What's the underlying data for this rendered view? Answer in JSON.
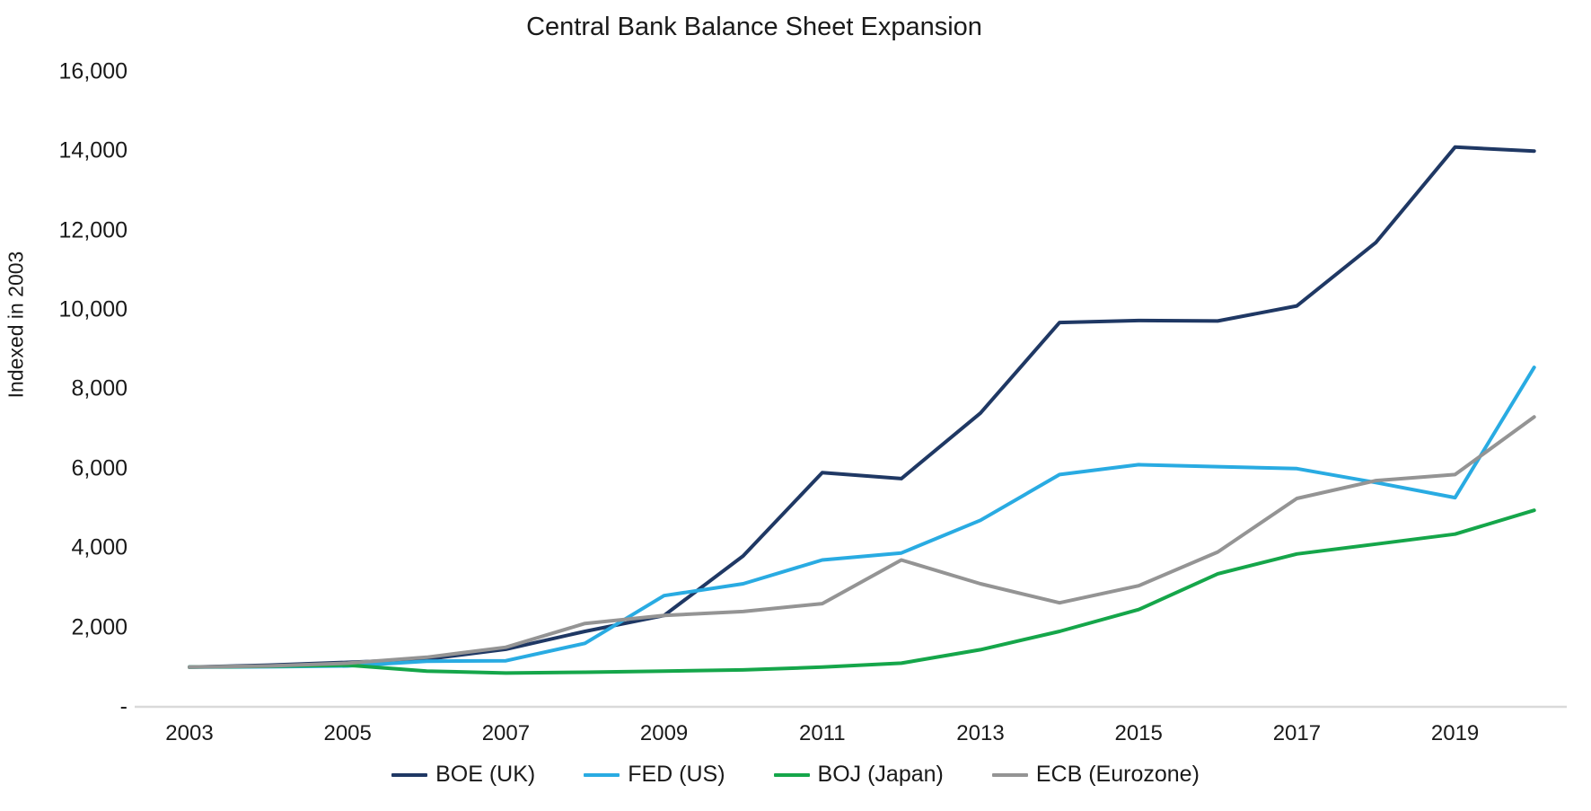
{
  "title": "Central Bank Balance Sheet Expansion",
  "chart_data": {
    "type": "line",
    "title": "Central Bank Balance Sheet Expansion",
    "xlabel": "",
    "ylabel": "Indexed in 2003",
    "x": [
      2003,
      2004,
      2005,
      2006,
      2007,
      2008,
      2009,
      2010,
      2011,
      2012,
      2013,
      2014,
      2015,
      2016,
      2017,
      2018,
      2019,
      2020
    ],
    "series": [
      {
        "name": "BOE (UK)",
        "color": "#1f3864",
        "values": [
          1000,
          1050,
          1120,
          1200,
          1450,
          1900,
          2300,
          3800,
          5900,
          5750,
          7400,
          9680,
          9730,
          9720,
          10100,
          11700,
          14100,
          14000
        ]
      },
      {
        "name": "FED (US)",
        "color": "#29abe2",
        "values": [
          1000,
          1010,
          1030,
          1150,
          1160,
          1600,
          2800,
          3100,
          3700,
          3875,
          4700,
          5850,
          6100,
          6050,
          6000,
          5650,
          5270,
          8550
        ]
      },
      {
        "name": "BOJ (Japan)",
        "color": "#15a64a",
        "values": [
          1000,
          1020,
          1050,
          900,
          850,
          870,
          900,
          930,
          1000,
          1100,
          1440,
          1900,
          2450,
          3350,
          3850,
          4100,
          4350,
          4950
        ]
      },
      {
        "name": "ECB (Eurozone)",
        "color": "#949494",
        "values": [
          1000,
          1030,
          1100,
          1250,
          1500,
          2100,
          2300,
          2400,
          2600,
          3700,
          3100,
          2620,
          3050,
          3900,
          5250,
          5700,
          5850,
          7300
        ]
      }
    ],
    "ylim": [
      0,
      16000
    ],
    "ytick_step": 2000,
    "ytick_labels": [
      "-",
      "2,000",
      "4,000",
      "6,000",
      "8,000",
      "10,000",
      "12,000",
      "14,000",
      "16,000"
    ],
    "xtick_labels": [
      "2003",
      "2005",
      "2007",
      "2009",
      "2011",
      "2013",
      "2015",
      "2017",
      "2019"
    ],
    "grid": false,
    "legend_position": "bottom"
  },
  "colors": {
    "axis_line": "#d9d9d9",
    "text": "#1a1a1a"
  }
}
